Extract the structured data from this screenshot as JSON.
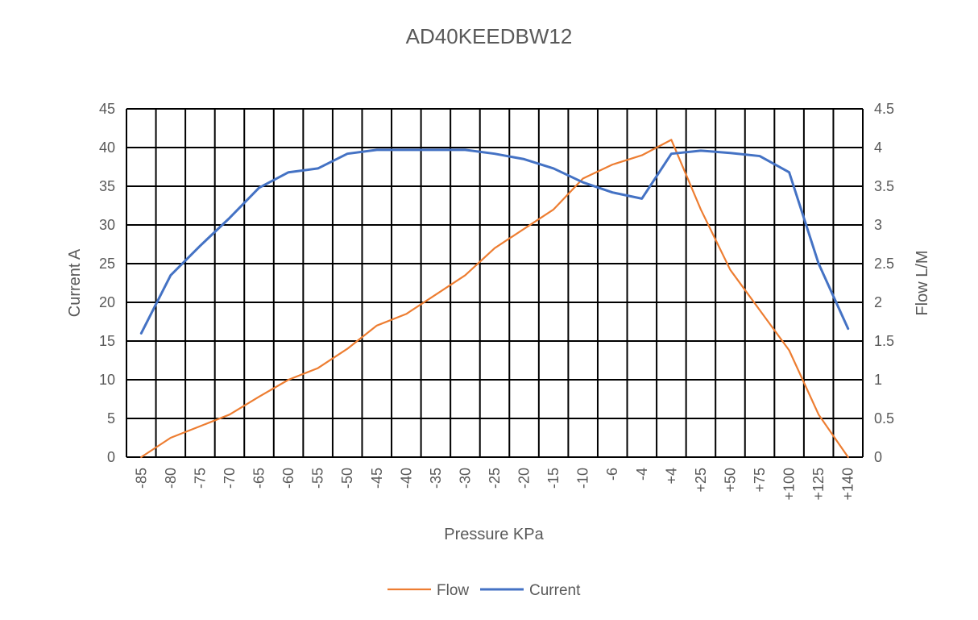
{
  "chart_data": {
    "type": "line",
    "title": "AD40KEEDBW12",
    "xlabel": "Pressure KPa",
    "ylabel_left": "Current A",
    "ylabel_right": "Flow L/M",
    "categories": [
      "-85",
      "-80",
      "-75",
      "-70",
      "-65",
      "-60",
      "-55",
      "-50",
      "-45",
      "-40",
      "-35",
      "-30",
      "-25",
      "-20",
      "-15",
      "-10",
      "-6",
      "-4",
      "+4",
      "+25",
      "+50",
      "+75",
      "+100",
      "+125",
      "+140"
    ],
    "ylim_left": [
      0,
      45
    ],
    "yticks_left": [
      0,
      5,
      10,
      15,
      20,
      25,
      30,
      35,
      40,
      45
    ],
    "ylim_right": [
      0,
      4.5
    ],
    "yticks_right": [
      "0",
      "0.5",
      "1",
      "1.5",
      "2",
      "2.5",
      "3",
      "3.5",
      "4",
      "4.5"
    ],
    "grid": true,
    "legend_position": "bottom",
    "series": [
      {
        "name": "Flow",
        "axis": "right",
        "color": "#ED7D31",
        "values": [
          0,
          0.25,
          0.4,
          0.55,
          0.78,
          1.0,
          1.15,
          1.4,
          1.7,
          1.85,
          2.1,
          2.35,
          2.7,
          2.95,
          3.2,
          3.6,
          3.78,
          3.9,
          4.1,
          3.2,
          2.42,
          1.9,
          1.38,
          0.55,
          0.0
        ]
      },
      {
        "name": "Current",
        "axis": "left",
        "color": "#4472C4",
        "values": [
          16.0,
          23.5,
          27.3,
          30.9,
          34.8,
          36.8,
          37.3,
          39.2,
          39.7,
          39.7,
          39.7,
          39.7,
          39.2,
          38.5,
          37.3,
          35.5,
          34.2,
          33.4,
          39.2,
          39.6,
          39.3,
          38.9,
          36.8,
          25.0,
          16.6
        ]
      }
    ]
  }
}
